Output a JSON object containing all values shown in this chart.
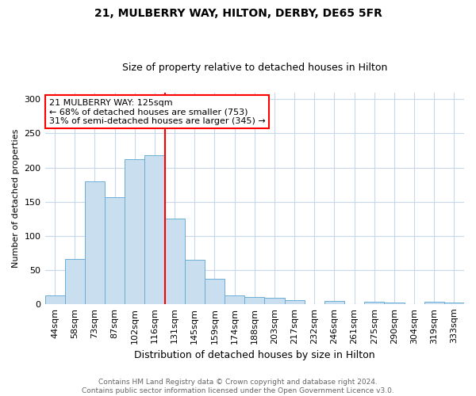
{
  "title1": "21, MULBERRY WAY, HILTON, DERBY, DE65 5FR",
  "title2": "Size of property relative to detached houses in Hilton",
  "xlabel": "Distribution of detached houses by size in Hilton",
  "ylabel": "Number of detached properties",
  "categories": [
    "44sqm",
    "58sqm",
    "73sqm",
    "87sqm",
    "102sqm",
    "116sqm",
    "131sqm",
    "145sqm",
    "159sqm",
    "174sqm",
    "188sqm",
    "203sqm",
    "217sqm",
    "232sqm",
    "246sqm",
    "261sqm",
    "275sqm",
    "290sqm",
    "304sqm",
    "319sqm",
    "333sqm"
  ],
  "values": [
    13,
    66,
    180,
    157,
    212,
    218,
    125,
    65,
    37,
    13,
    10,
    9,
    5,
    0,
    4,
    0,
    3,
    2,
    0,
    3,
    2
  ],
  "bar_color": "#c9dff0",
  "bar_edge_color": "#6aaed6",
  "property_line_idx": 6,
  "property_line_color": "red",
  "annotation_text": "21 MULBERRY WAY: 125sqm\n← 68% of detached houses are smaller (753)\n31% of semi-detached houses are larger (345) →",
  "annotation_box_color": "white",
  "annotation_box_edge": "red",
  "footer": "Contains HM Land Registry data © Crown copyright and database right 2024.\nContains public sector information licensed under the Open Government Licence v3.0.",
  "ylim": [
    0,
    310
  ],
  "yticks": [
    0,
    50,
    100,
    150,
    200,
    250,
    300
  ],
  "bg_color": "white",
  "grid_color": "#c8d8e8",
  "title1_fontsize": 10,
  "title2_fontsize": 9,
  "xlabel_fontsize": 9,
  "ylabel_fontsize": 8,
  "tick_fontsize": 8,
  "annot_fontsize": 8,
  "footer_fontsize": 6.5
}
